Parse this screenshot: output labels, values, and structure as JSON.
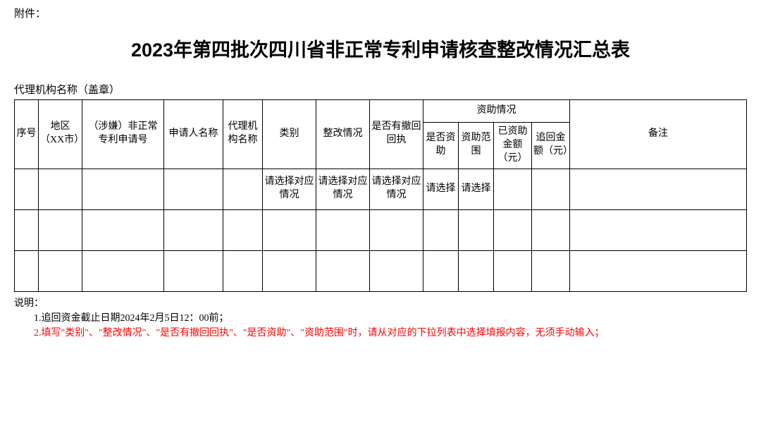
{
  "attachment_label": "附件：",
  "title": "2023年第四批次四川省非正常专利申请核查整改情况汇总表",
  "agency_label": "代理机构名称（盖章）",
  "headers": {
    "seq": "序号",
    "region": "地区（XX市）",
    "patent_no": "（涉嫌）非正常专利申请号",
    "applicant": "申请人名称",
    "agency": "代理机构名称",
    "category": "类别",
    "rectify": "整改情况",
    "withdraw": "是否有撤回回执",
    "funding_group": "资助情况",
    "fund_yn": "是否资助",
    "fund_scope": "资助范围",
    "funded_amt": "已资助金额（元）",
    "recover_amt": "追回金额（元）",
    "remark": "备注"
  },
  "placeholders": {
    "select_situation": "请选择对应情况",
    "select": "请选择"
  },
  "notes": {
    "label": "说明：",
    "line1": "1.追回资金截止日期2024年2月5日12：00前；",
    "line2": "2.填写\"类别\"、\"整改情况\"、\"是否有撤回回执\"、\"是否资助\"、\"资助范围\"时，请从对应的下拉列表中选择填报内容，无须手动输入；"
  },
  "styling": {
    "border_color": "#000000",
    "background": "#ffffff",
    "text_color": "#000000",
    "highlight_color": "#ff0000",
    "title_fontsize": 27,
    "body_fontsize": 14,
    "data_row_count": 3
  }
}
